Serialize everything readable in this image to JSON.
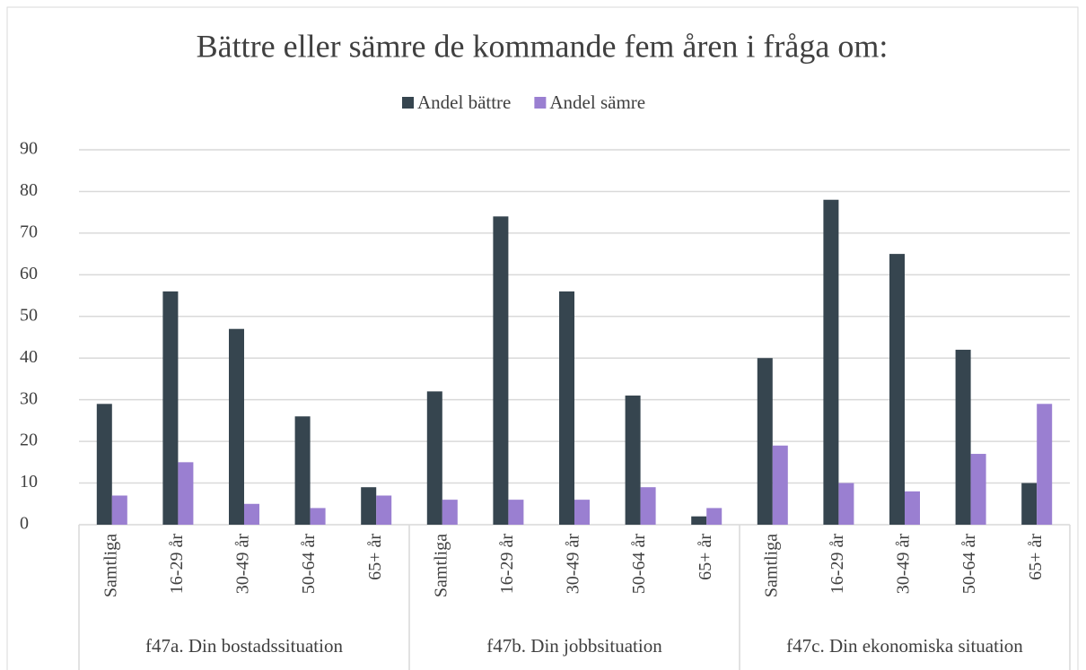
{
  "chart_data": {
    "type": "bar",
    "title": "Bättre eller sämre de kommande fem åren i fråga om:",
    "category_groups": [
      {
        "name": "f47a. Din bostadssituation",
        "categories": [
          "Samtliga",
          "16-29 år",
          "30-49 år",
          "50-64 år",
          "65+ år"
        ]
      },
      {
        "name": "f47b. Din jobbsituation",
        "categories": [
          "Samtliga",
          "16-29 år",
          "30-49 år",
          "50-64 år",
          "65+ år"
        ]
      },
      {
        "name": "f47c. Din ekonomiska situation",
        "categories": [
          "Samtliga",
          "16-29 år",
          "30-49 år",
          "50-64 år",
          "65+ år"
        ]
      }
    ],
    "series": [
      {
        "name": "Andel bättre",
        "color": "#36454f",
        "values": [
          29,
          56,
          47,
          26,
          9,
          32,
          74,
          56,
          31,
          2,
          40,
          78,
          65,
          42,
          10
        ]
      },
      {
        "name": "Andel sämre",
        "color": "#9a7fd1",
        "values": [
          7,
          15,
          5,
          4,
          7,
          6,
          6,
          6,
          9,
          4,
          19,
          10,
          8,
          17,
          29
        ]
      }
    ],
    "ylim": [
      0,
      90
    ],
    "yticks": [
      0,
      10,
      20,
      30,
      40,
      50,
      60,
      70,
      80,
      90
    ],
    "grid": true,
    "legend": "top"
  }
}
